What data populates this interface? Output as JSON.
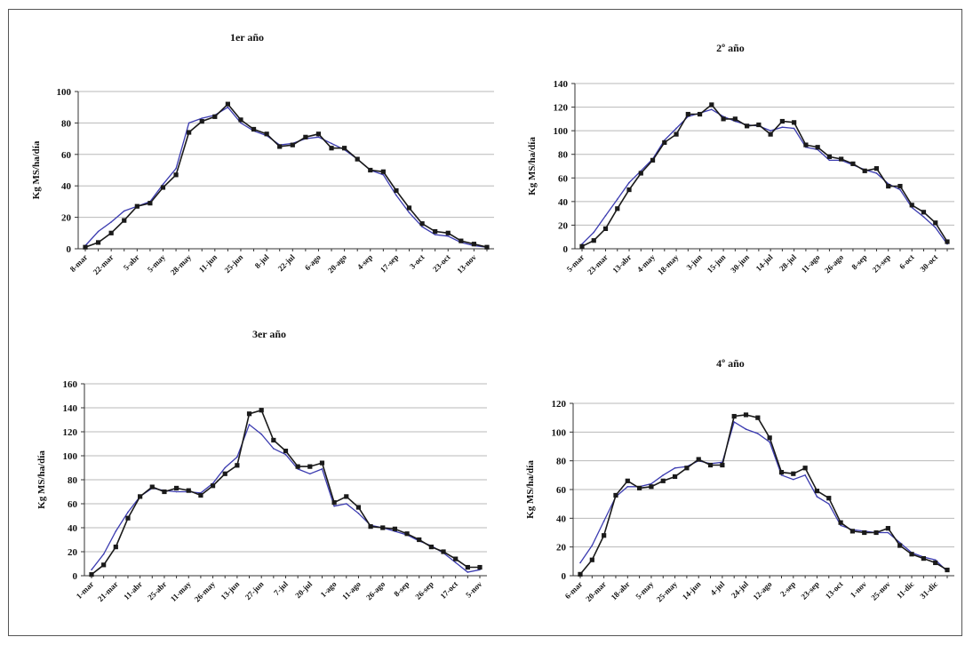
{
  "chart_data": [
    {
      "type": "line",
      "title": "1er año",
      "ylabel": "Kg MS/ha/día",
      "xlabel": "",
      "ylim": [
        0,
        100
      ],
      "yticks": [
        0,
        20,
        40,
        60,
        80,
        100
      ],
      "grid": true,
      "tick_labels": [
        "8-mar",
        "22-mar",
        "5-abr",
        "5-may",
        "28-may",
        "11-jun",
        "25-jun",
        "8-jul",
        "22-jul",
        "6-ago",
        "20-ago",
        "4-sep",
        "17-sep",
        "3-oct",
        "23-oct",
        "13-nov"
      ],
      "series": [
        {
          "color": "#1a1a1a",
          "marker": "square",
          "values": [
            1,
            4,
            10,
            18,
            27,
            29,
            39,
            47,
            74,
            81,
            84,
            92,
            82,
            76,
            73,
            65,
            66,
            71,
            73,
            64,
            64,
            57,
            50,
            49,
            37,
            26,
            16,
            11,
            10,
            5,
            3,
            1
          ]
        },
        {
          "color": "#3b3bb0",
          "marker": "none",
          "values": [
            2,
            11,
            17,
            24,
            27,
            30,
            41,
            51,
            80,
            83,
            85,
            90,
            80,
            75,
            72,
            66,
            67,
            70,
            71,
            67,
            63,
            57,
            50,
            47,
            34,
            23,
            14,
            9,
            8,
            4,
            2,
            1
          ]
        }
      ]
    },
    {
      "type": "line",
      "title": "2º año",
      "ylabel": "Kg MS/ha/día",
      "xlabel": "",
      "ylim": [
        0,
        140
      ],
      "yticks": [
        0,
        20,
        40,
        60,
        80,
        100,
        120,
        140
      ],
      "grid": true,
      "tick_labels": [
        "5-mar",
        "23-mar",
        "13-abr",
        "4-may",
        "18-may",
        "3-jun",
        "15-jun",
        "30-jun",
        "14-jul",
        "28-jul",
        "11-ago",
        "26-ago",
        "8-sep",
        "23-sep",
        "6-oct",
        "30-oct"
      ],
      "series": [
        {
          "color": "#1a1a1a",
          "marker": "square",
          "values": [
            2,
            7,
            17,
            34,
            50,
            64,
            75,
            90,
            97,
            114,
            114,
            122,
            110,
            110,
            104,
            105,
            97,
            108,
            107,
            88,
            86,
            78,
            76,
            72,
            66,
            68,
            53,
            53,
            37,
            31,
            22,
            6
          ]
        },
        {
          "color": "#3b3bb0",
          "marker": "none",
          "values": [
            4,
            14,
            28,
            42,
            56,
            66,
            76,
            92,
            102,
            112,
            115,
            118,
            112,
            108,
            105,
            104,
            100,
            103,
            102,
            86,
            84,
            75,
            75,
            71,
            67,
            64,
            55,
            50,
            35,
            27,
            18,
            4
          ]
        }
      ]
    },
    {
      "type": "line",
      "title": "3er año",
      "ylabel": "Kg MS/ha/día",
      "xlabel": "",
      "ylim": [
        0,
        160
      ],
      "yticks": [
        0,
        20,
        40,
        60,
        80,
        100,
        120,
        140,
        160
      ],
      "grid": true,
      "tick_labels": [
        "1-mar",
        "21-mar",
        "11-abr",
        "25-abr",
        "11-may",
        "26-may",
        "13-jun",
        "27-jun",
        "7-jul",
        "20-jul",
        "1-ago",
        "11-ago",
        "26-ago",
        "8-sep",
        "26-sep",
        "17-oct",
        "5-nov"
      ],
      "series": [
        {
          "color": "#1a1a1a",
          "marker": "square",
          "values": [
            1,
            9,
            24,
            48,
            66,
            74,
            70,
            73,
            71,
            67,
            75,
            85,
            92,
            135,
            138,
            113,
            104,
            91,
            91,
            94,
            61,
            66,
            57,
            41,
            40,
            39,
            35,
            30,
            24,
            20,
            14,
            7,
            7
          ]
        },
        {
          "color": "#3b3bb0",
          "marker": "none",
          "values": [
            5,
            18,
            37,
            53,
            66,
            73,
            71,
            70,
            70,
            69,
            77,
            90,
            99,
            126,
            118,
            106,
            101,
            89,
            85,
            89,
            58,
            60,
            52,
            42,
            40,
            37,
            34,
            29,
            25,
            19,
            11,
            3,
            5
          ]
        }
      ]
    },
    {
      "type": "line",
      "title": "4º año",
      "ylabel": "Kg MS/ha/día",
      "xlabel": "",
      "ylim": [
        0,
        120
      ],
      "yticks": [
        0,
        20,
        40,
        60,
        80,
        100,
        120
      ],
      "grid": true,
      "tick_labels": [
        "6-mar",
        "20-mar",
        "18-abr",
        "5-may",
        "25-may",
        "14-jun",
        "4-jul",
        "24-jul",
        "12-ago",
        "2-sep",
        "23-sep",
        "13-oct",
        "1-nov",
        "25-nov",
        "11-dic",
        "31-dic"
      ],
      "series": [
        {
          "color": "#1a1a1a",
          "marker": "square",
          "values": [
            1,
            11,
            28,
            56,
            66,
            61,
            62,
            66,
            69,
            75,
            81,
            77,
            77,
            111,
            112,
            110,
            96,
            72,
            71,
            75,
            59,
            54,
            37,
            31,
            30,
            30,
            33,
            21,
            15,
            12,
            9,
            4
          ]
        },
        {
          "color": "#3b3bb0",
          "marker": "none",
          "values": [
            9,
            21,
            38,
            55,
            62,
            62,
            64,
            70,
            75,
            76,
            80,
            78,
            79,
            107,
            102,
            99,
            93,
            70,
            67,
            70,
            55,
            50,
            35,
            32,
            31,
            30,
            30,
            23,
            16,
            13,
            11,
            3
          ]
        }
      ]
    }
  ]
}
